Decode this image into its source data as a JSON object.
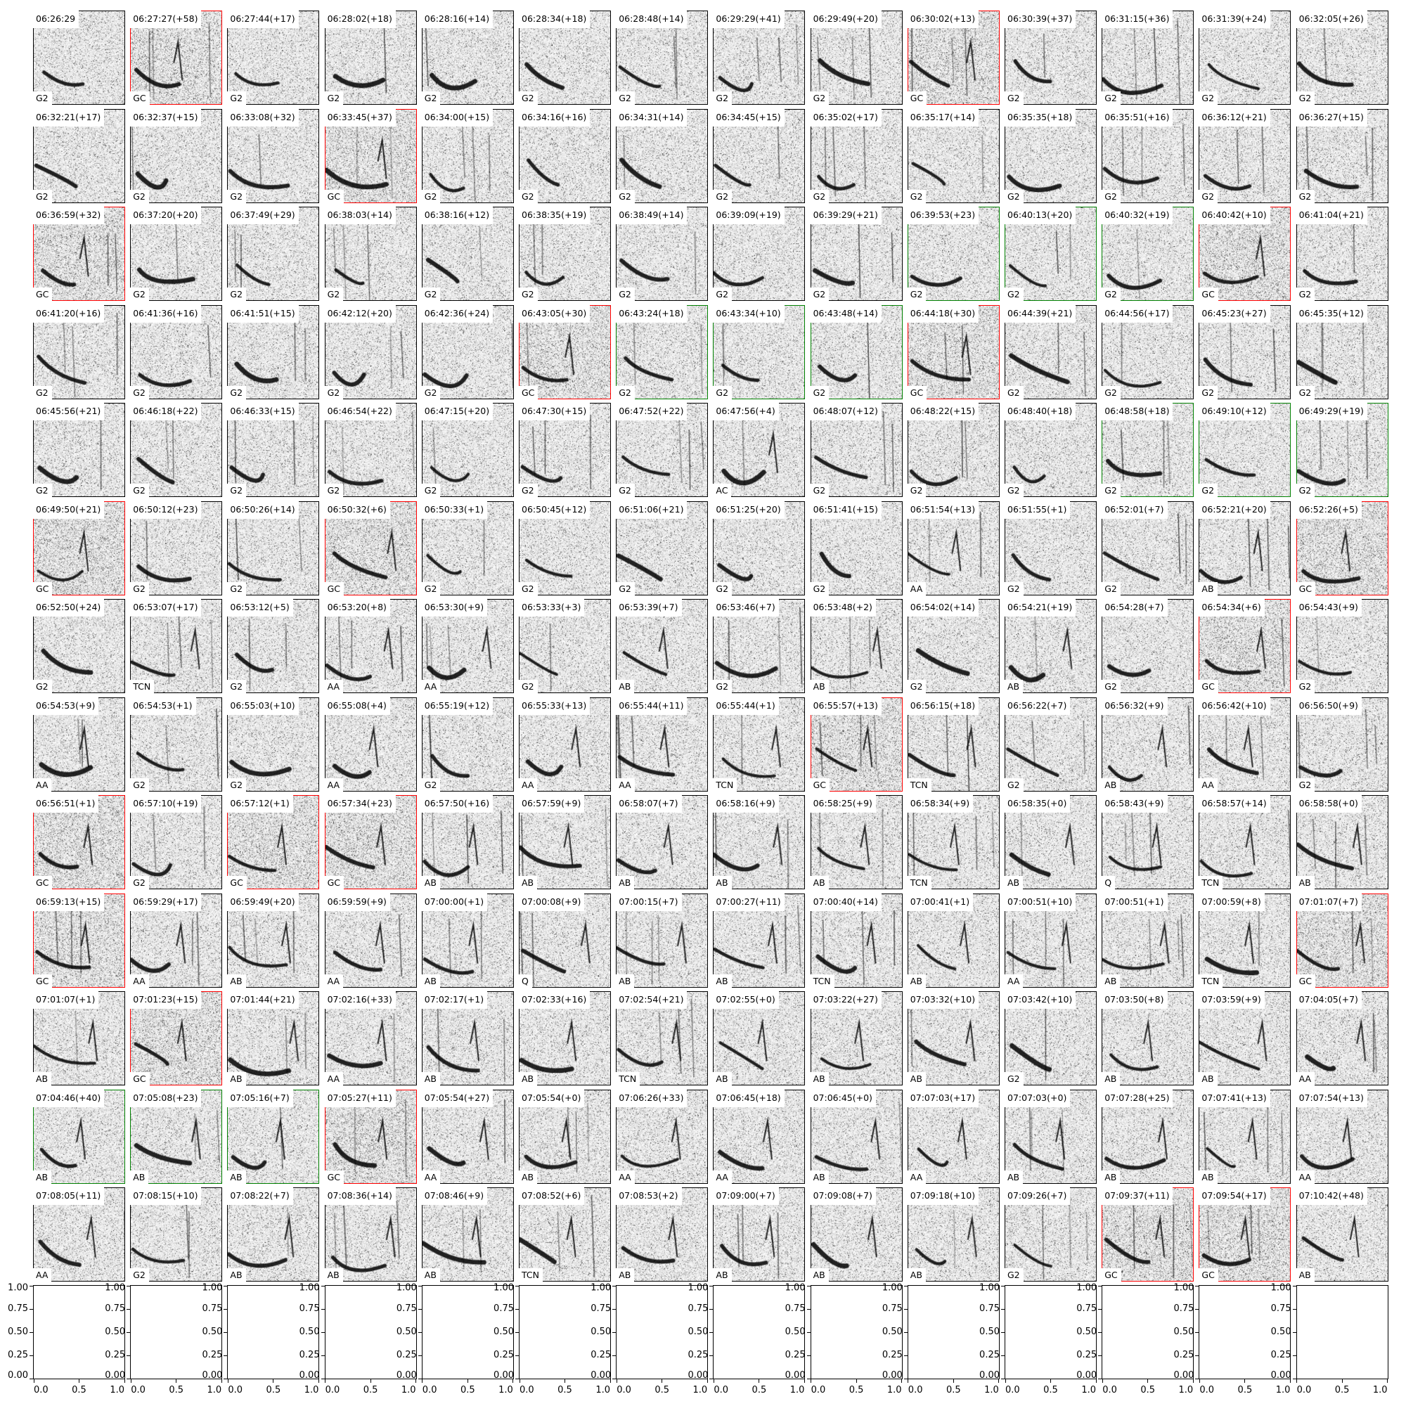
{
  "colors": {
    "default_frame": "#000000",
    "red": "#ff0000",
    "green": "#008000"
  },
  "panels": [
    [
      [
        "06:26:29",
        "G2",
        ""
      ],
      [
        "06:27:27(+58)",
        "GC",
        "red"
      ],
      [
        "06:27:44(+17)",
        "G2",
        ""
      ],
      [
        "06:28:02(+18)",
        "G2",
        ""
      ],
      [
        "06:28:16(+14)",
        "G2",
        ""
      ],
      [
        "06:28:34(+18)",
        "G2",
        ""
      ],
      [
        "06:28:48(+14)",
        "G2",
        ""
      ],
      [
        "06:29:29(+41)",
        "G2",
        ""
      ],
      [
        "06:29:49(+20)",
        "G2",
        ""
      ],
      [
        "06:30:02(+13)",
        "GC",
        "red"
      ],
      [
        "06:30:39(+37)",
        "G2",
        ""
      ],
      [
        "06:31:15(+36)",
        "G2",
        ""
      ],
      [
        "06:31:39(+24)",
        "G2",
        ""
      ],
      [
        "06:32:05(+26)",
        "G2",
        ""
      ]
    ],
    [
      [
        "06:32:21(+17)",
        "G2",
        ""
      ],
      [
        "06:32:37(+15)",
        "G2",
        ""
      ],
      [
        "06:33:08(+32)",
        "G2",
        ""
      ],
      [
        "06:33:45(+37)",
        "GC",
        "red"
      ],
      [
        "06:34:00(+15)",
        "G2",
        ""
      ],
      [
        "06:34:16(+16)",
        "G2",
        ""
      ],
      [
        "06:34:31(+14)",
        "G2",
        ""
      ],
      [
        "06:34:45(+15)",
        "G2",
        ""
      ],
      [
        "06:35:02(+17)",
        "G2",
        ""
      ],
      [
        "06:35:17(+14)",
        "G2",
        ""
      ],
      [
        "06:35:35(+18)",
        "G2",
        ""
      ],
      [
        "06:35:51(+16)",
        "G2",
        ""
      ],
      [
        "06:36:12(+21)",
        "G2",
        ""
      ],
      [
        "06:36:27(+15)",
        "G2",
        ""
      ]
    ],
    [
      [
        "06:36:59(+32)",
        "GC",
        "red"
      ],
      [
        "06:37:20(+20)",
        "G2",
        ""
      ],
      [
        "06:37:49(+29)",
        "G2",
        ""
      ],
      [
        "06:38:03(+14)",
        "G2",
        ""
      ],
      [
        "06:38:16(+12)",
        "G2",
        ""
      ],
      [
        "06:38:35(+19)",
        "G2",
        ""
      ],
      [
        "06:38:49(+14)",
        "G2",
        ""
      ],
      [
        "06:39:09(+19)",
        "G2",
        ""
      ],
      [
        "06:39:29(+21)",
        "G2",
        ""
      ],
      [
        "06:39:53(+23)",
        "G2",
        "green"
      ],
      [
        "06:40:13(+20)",
        "G2",
        "green"
      ],
      [
        "06:40:32(+19)",
        "G2",
        "green"
      ],
      [
        "06:40:42(+10)",
        "GC",
        "red"
      ],
      [
        "06:41:04(+21)",
        "G2",
        ""
      ]
    ],
    [
      [
        "06:41:20(+16)",
        "G2",
        ""
      ],
      [
        "06:41:36(+16)",
        "G2",
        ""
      ],
      [
        "06:41:51(+15)",
        "G2",
        ""
      ],
      [
        "06:42:12(+20)",
        "G2",
        ""
      ],
      [
        "06:42:36(+24)",
        "G2",
        ""
      ],
      [
        "06:43:05(+30)",
        "GC",
        "red"
      ],
      [
        "06:43:24(+18)",
        "G2",
        "green"
      ],
      [
        "06:43:34(+10)",
        "G2",
        "green"
      ],
      [
        "06:43:48(+14)",
        "G2",
        "green"
      ],
      [
        "06:44:18(+30)",
        "GC",
        "red"
      ],
      [
        "06:44:39(+21)",
        "G2",
        ""
      ],
      [
        "06:44:56(+17)",
        "G2",
        ""
      ],
      [
        "06:45:23(+27)",
        "G2",
        ""
      ],
      [
        "06:45:35(+12)",
        "G2",
        ""
      ]
    ],
    [
      [
        "06:45:56(+21)",
        "G2",
        ""
      ],
      [
        "06:46:18(+22)",
        "G2",
        ""
      ],
      [
        "06:46:33(+15)",
        "G2",
        ""
      ],
      [
        "06:46:54(+22)",
        "G2",
        ""
      ],
      [
        "06:47:15(+20)",
        "G2",
        ""
      ],
      [
        "06:47:30(+15)",
        "G2",
        ""
      ],
      [
        "06:47:52(+22)",
        "G2",
        ""
      ],
      [
        "06:47:56(+4)",
        "AC",
        ""
      ],
      [
        "06:48:07(+12)",
        "G2",
        ""
      ],
      [
        "06:48:22(+15)",
        "G2",
        ""
      ],
      [
        "06:48:40(+18)",
        "G2",
        ""
      ],
      [
        "06:48:58(+18)",
        "G2",
        "green"
      ],
      [
        "06:49:10(+12)",
        "G2",
        "green"
      ],
      [
        "06:49:29(+19)",
        "G2",
        "green"
      ]
    ],
    [
      [
        "06:49:50(+21)",
        "GC",
        "red"
      ],
      [
        "06:50:12(+23)",
        "G2",
        ""
      ],
      [
        "06:50:26(+14)",
        "G2",
        ""
      ],
      [
        "06:50:32(+6)",
        "GC",
        "red"
      ],
      [
        "06:50:33(+1)",
        "G2",
        ""
      ],
      [
        "06:50:45(+12)",
        "G2",
        ""
      ],
      [
        "06:51:06(+21)",
        "G2",
        ""
      ],
      [
        "06:51:25(+20)",
        "G2",
        ""
      ],
      [
        "06:51:41(+15)",
        "G2",
        ""
      ],
      [
        "06:51:54(+13)",
        "AA",
        ""
      ],
      [
        "06:51:55(+1)",
        "G2",
        ""
      ],
      [
        "06:52:01(+7)",
        "G2",
        ""
      ],
      [
        "06:52:21(+20)",
        "AB",
        ""
      ],
      [
        "06:52:26(+5)",
        "GC",
        "red"
      ]
    ],
    [
      [
        "06:52:50(+24)",
        "G2",
        ""
      ],
      [
        "06:53:07(+17)",
        "TCN",
        ""
      ],
      [
        "06:53:12(+5)",
        "G2",
        ""
      ],
      [
        "06:53:20(+8)",
        "AA",
        ""
      ],
      [
        "06:53:30(+9)",
        "AA",
        ""
      ],
      [
        "06:53:33(+3)",
        "G2",
        ""
      ],
      [
        "06:53:39(+7)",
        "AB",
        ""
      ],
      [
        "06:53:46(+7)",
        "G2",
        ""
      ],
      [
        "06:53:48(+2)",
        "AB",
        ""
      ],
      [
        "06:54:02(+14)",
        "G2",
        ""
      ],
      [
        "06:54:21(+19)",
        "AB",
        ""
      ],
      [
        "06:54:28(+7)",
        "G2",
        ""
      ],
      [
        "06:54:34(+6)",
        "GC",
        "red"
      ],
      [
        "06:54:43(+9)",
        "G2",
        ""
      ]
    ],
    [
      [
        "06:54:53(+9)",
        "AA",
        ""
      ],
      [
        "06:54:53(+1)",
        "G2",
        ""
      ],
      [
        "06:55:03(+10)",
        "G2",
        ""
      ],
      [
        "06:55:08(+4)",
        "AA",
        ""
      ],
      [
        "06:55:19(+12)",
        "G2",
        ""
      ],
      [
        "06:55:33(+13)",
        "AA",
        ""
      ],
      [
        "06:55:44(+11)",
        "AA",
        ""
      ],
      [
        "06:55:44(+1)",
        "TCN",
        ""
      ],
      [
        "06:55:57(+13)",
        "GC",
        "red"
      ],
      [
        "06:56:15(+18)",
        "TCN",
        ""
      ],
      [
        "06:56:22(+7)",
        "G2",
        ""
      ],
      [
        "06:56:32(+9)",
        "AB",
        ""
      ],
      [
        "06:56:42(+10)",
        "AA",
        ""
      ],
      [
        "06:56:50(+9)",
        "G2",
        ""
      ]
    ],
    [
      [
        "06:56:51(+1)",
        "GC",
        "red"
      ],
      [
        "06:57:10(+19)",
        "G2",
        ""
      ],
      [
        "06:57:12(+1)",
        "GC",
        "red"
      ],
      [
        "06:57:34(+23)",
        "GC",
        "red"
      ],
      [
        "06:57:50(+16)",
        "AB",
        ""
      ],
      [
        "06:57:59(+9)",
        "AB",
        ""
      ],
      [
        "06:58:07(+7)",
        "AB",
        ""
      ],
      [
        "06:58:16(+9)",
        "AB",
        ""
      ],
      [
        "06:58:25(+9)",
        "AB",
        ""
      ],
      [
        "06:58:34(+9)",
        "TCN",
        ""
      ],
      [
        "06:58:35(+0)",
        "AB",
        ""
      ],
      [
        "06:58:43(+9)",
        "Q",
        ""
      ],
      [
        "06:58:57(+14)",
        "TCN",
        ""
      ],
      [
        "06:58:58(+0)",
        "AB",
        ""
      ]
    ],
    [
      [
        "06:59:13(+15)",
        "GC",
        "red"
      ],
      [
        "06:59:29(+17)",
        "AA",
        ""
      ],
      [
        "06:59:49(+20)",
        "AB",
        ""
      ],
      [
        "06:59:59(+9)",
        "AA",
        ""
      ],
      [
        "07:00:00(+1)",
        "AB",
        ""
      ],
      [
        "07:00:08(+9)",
        "Q",
        ""
      ],
      [
        "07:00:15(+7)",
        "AB",
        ""
      ],
      [
        "07:00:27(+11)",
        "AB",
        ""
      ],
      [
        "07:00:40(+14)",
        "TCN",
        ""
      ],
      [
        "07:00:41(+1)",
        "AB",
        ""
      ],
      [
        "07:00:51(+10)",
        "AA",
        ""
      ],
      [
        "07:00:51(+1)",
        "AB",
        ""
      ],
      [
        "07:00:59(+8)",
        "TCN",
        ""
      ],
      [
        "07:01:07(+7)",
        "GC",
        "red"
      ]
    ],
    [
      [
        "07:01:07(+1)",
        "AB",
        ""
      ],
      [
        "07:01:23(+15)",
        "GC",
        "red"
      ],
      [
        "07:01:44(+21)",
        "AB",
        ""
      ],
      [
        "07:02:16(+33)",
        "AA",
        ""
      ],
      [
        "07:02:17(+1)",
        "AB",
        ""
      ],
      [
        "07:02:33(+16)",
        "AB",
        ""
      ],
      [
        "07:02:54(+21)",
        "TCN",
        ""
      ],
      [
        "07:02:55(+0)",
        "AB",
        ""
      ],
      [
        "07:03:22(+27)",
        "AB",
        ""
      ],
      [
        "07:03:32(+10)",
        "AB",
        ""
      ],
      [
        "07:03:42(+10)",
        "G2",
        ""
      ],
      [
        "07:03:50(+8)",
        "AB",
        ""
      ],
      [
        "07:03:59(+9)",
        "AB",
        ""
      ],
      [
        "07:04:05(+7)",
        "AA",
        ""
      ]
    ],
    [
      [
        "07:04:46(+40)",
        "AB",
        "green"
      ],
      [
        "07:05:08(+23)",
        "AB",
        "green"
      ],
      [
        "07:05:16(+7)",
        "AB",
        "green"
      ],
      [
        "07:05:27(+11)",
        "GC",
        "red"
      ],
      [
        "07:05:54(+27)",
        "AA",
        ""
      ],
      [
        "07:05:54(+0)",
        "AB",
        ""
      ],
      [
        "07:06:26(+33)",
        "AA",
        ""
      ],
      [
        "07:06:45(+18)",
        "AA",
        ""
      ],
      [
        "07:06:45(+0)",
        "AB",
        ""
      ],
      [
        "07:07:03(+17)",
        "AA",
        ""
      ],
      [
        "07:07:03(+0)",
        "AB",
        ""
      ],
      [
        "07:07:28(+25)",
        "AB",
        ""
      ],
      [
        "07:07:41(+13)",
        "AB",
        ""
      ],
      [
        "07:07:54(+13)",
        "AA",
        ""
      ]
    ],
    [
      [
        "07:08:05(+11)",
        "AA",
        ""
      ],
      [
        "07:08:15(+10)",
        "G2",
        ""
      ],
      [
        "07:08:22(+7)",
        "AB",
        ""
      ],
      [
        "07:08:36(+14)",
        "AB",
        ""
      ],
      [
        "07:08:46(+9)",
        "AB",
        ""
      ],
      [
        "07:08:52(+6)",
        "TCN",
        ""
      ],
      [
        "07:08:53(+2)",
        "AB",
        ""
      ],
      [
        "07:09:00(+7)",
        "AB",
        ""
      ],
      [
        "07:09:08(+7)",
        "AB",
        ""
      ],
      [
        "07:09:18(+10)",
        "AB",
        ""
      ],
      [
        "07:09:26(+7)",
        "G2",
        ""
      ],
      [
        "07:09:37(+11)",
        "GC",
        "red"
      ],
      [
        "07:09:54(+17)",
        "GC",
        "red"
      ],
      [
        "07:10:42(+48)",
        "AB",
        ""
      ]
    ]
  ],
  "empty_axes": {
    "count": 14,
    "xticks": [
      "0.0",
      "0.5",
      "1.0"
    ],
    "yticks": [
      "0.00",
      "0.25",
      "0.50",
      "0.75",
      "1.00"
    ],
    "xlim": [
      0,
      1
    ],
    "ylim": [
      0,
      1
    ]
  }
}
